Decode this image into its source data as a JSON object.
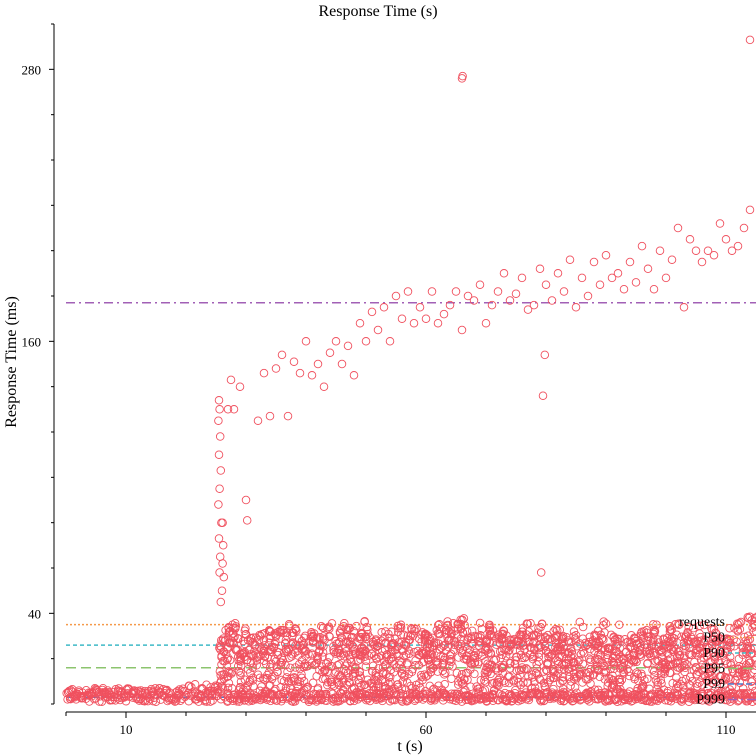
{
  "chart_data": {
    "type": "scatter",
    "title": "Response Time (s)",
    "xlabel": "t (s)",
    "ylabel": "Response Time (ms)",
    "xlim": [
      0,
      115
    ],
    "ylim": [
      0,
      300
    ],
    "x_ticks": [
      10,
      60,
      110
    ],
    "y_ticks": [
      40,
      160,
      280
    ],
    "grid": false,
    "legend_position": "bottom-right",
    "legend": [
      "requests",
      "P50",
      "P90",
      "P95",
      "P99",
      "P999"
    ],
    "colors": {
      "requests": "#f0515f",
      "P50": "#f59a4a",
      "P90": "#3fb9c6",
      "P95": "#8cc46e",
      "P99": "#4f77c9",
      "P999": "#a260b6"
    },
    "percentiles": [
      {
        "name": "P50",
        "value": 35
      },
      {
        "name": "P90",
        "value": 26
      },
      {
        "name": "P95",
        "value": 16
      },
      {
        "name": "P99",
        "value": 3
      },
      {
        "name": "P999",
        "value": 177
      }
    ],
    "series": [
      {
        "name": "requests",
        "outliers": [
          [
            25.5,
            134
          ],
          [
            25.6,
            130
          ],
          [
            25.4,
            125
          ],
          [
            25.7,
            118
          ],
          [
            25.5,
            110
          ],
          [
            25.8,
            103
          ],
          [
            25.6,
            95
          ],
          [
            25.4,
            88
          ],
          [
            25.9,
            80
          ],
          [
            25.5,
            73
          ],
          [
            25.7,
            65
          ],
          [
            25.6,
            58
          ],
          [
            26.0,
            50
          ],
          [
            25.8,
            45
          ],
          [
            26.1,
            80
          ],
          [
            26.2,
            70
          ],
          [
            26.1,
            62
          ],
          [
            26.3,
            56
          ],
          [
            27.0,
            130
          ],
          [
            27.5,
            143
          ],
          [
            28.0,
            130
          ],
          [
            29.0,
            140
          ],
          [
            30.0,
            90
          ],
          [
            30.2,
            81
          ],
          [
            32.0,
            125
          ],
          [
            33.0,
            146
          ],
          [
            34.0,
            127
          ],
          [
            35.0,
            148
          ],
          [
            36.0,
            154
          ],
          [
            37.0,
            127
          ],
          [
            38.0,
            151
          ],
          [
            39.0,
            146
          ],
          [
            40.0,
            160
          ],
          [
            41.0,
            145
          ],
          [
            42.0,
            150
          ],
          [
            43.0,
            140
          ],
          [
            44.0,
            155
          ],
          [
            45.0,
            160
          ],
          [
            46.0,
            150
          ],
          [
            47.0,
            158
          ],
          [
            48.0,
            145
          ],
          [
            49.0,
            168
          ],
          [
            50.0,
            160
          ],
          [
            51.0,
            173
          ],
          [
            52.0,
            165
          ],
          [
            53.0,
            175
          ],
          [
            54.0,
            160
          ],
          [
            55.0,
            180
          ],
          [
            56.0,
            170
          ],
          [
            57.0,
            182
          ],
          [
            58.0,
            168
          ],
          [
            59.0,
            175
          ],
          [
            60.0,
            170
          ],
          [
            61.0,
            182
          ],
          [
            62.0,
            168
          ],
          [
            63.0,
            172
          ],
          [
            64.0,
            176
          ],
          [
            65.0,
            182
          ],
          [
            66.0,
            165
          ],
          [
            67.0,
            180
          ],
          [
            68.0,
            178
          ],
          [
            69.0,
            185
          ],
          [
            70.0,
            168
          ],
          [
            71.0,
            176
          ],
          [
            72.0,
            182
          ],
          [
            73.0,
            190
          ],
          [
            74.0,
            178
          ],
          [
            75.0,
            181
          ],
          [
            76.0,
            188
          ],
          [
            77.0,
            174
          ],
          [
            78.0,
            176
          ],
          [
            79.0,
            192
          ],
          [
            80.0,
            185
          ],
          [
            81.0,
            178
          ],
          [
            82.0,
            190
          ],
          [
            83.0,
            182
          ],
          [
            84.0,
            196
          ],
          [
            85.0,
            175
          ],
          [
            86.0,
            188
          ],
          [
            87.0,
            180
          ],
          [
            88.0,
            195
          ],
          [
            89.0,
            185
          ],
          [
            90.0,
            198
          ],
          [
            91.0,
            188
          ],
          [
            92.0,
            190
          ],
          [
            93.0,
            183
          ],
          [
            94.0,
            195
          ],
          [
            95.0,
            186
          ],
          [
            96.0,
            202
          ],
          [
            97.0,
            192
          ],
          [
            98.0,
            183
          ],
          [
            99.0,
            200
          ],
          [
            100.0,
            188
          ],
          [
            101.0,
            196
          ],
          [
            102.0,
            210
          ],
          [
            103.0,
            175
          ],
          [
            104.0,
            205
          ],
          [
            105.0,
            200
          ],
          [
            106.0,
            195
          ],
          [
            107.0,
            200
          ],
          [
            108.0,
            198
          ],
          [
            109.0,
            212
          ],
          [
            110.0,
            205
          ],
          [
            111.0,
            200
          ],
          [
            112.0,
            202
          ],
          [
            113.0,
            210
          ],
          [
            114.0,
            218
          ],
          [
            66.0,
            276
          ],
          [
            66.1,
            277
          ],
          [
            114.0,
            293
          ],
          [
            79.5,
            136
          ],
          [
            79.8,
            154
          ],
          [
            79.2,
            58
          ]
        ]
      }
    ]
  }
}
